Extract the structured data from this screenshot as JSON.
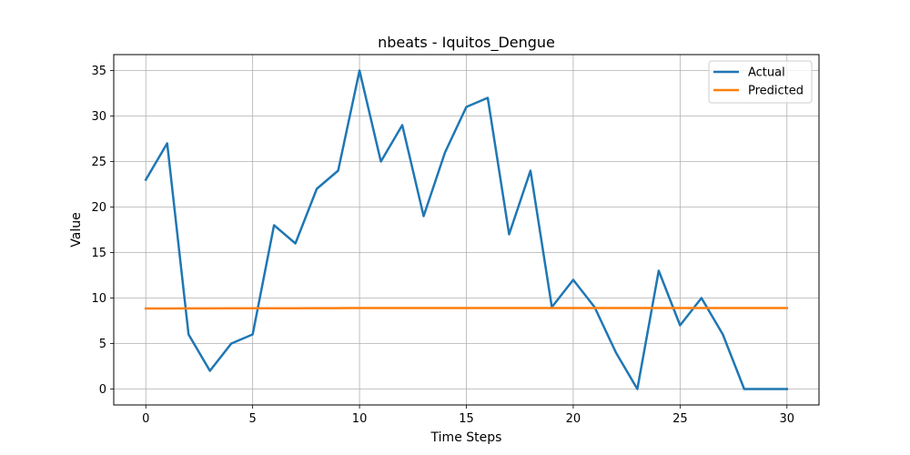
{
  "chart_data": {
    "type": "line",
    "title": "nbeats - Iquitos_Dengue",
    "xlabel": "Time Steps",
    "ylabel": "Value",
    "xlim": [
      -1.5,
      31.5
    ],
    "ylim": [
      -1.75,
      36.75
    ],
    "x_ticks": [
      0,
      5,
      10,
      15,
      20,
      25,
      30
    ],
    "y_ticks": [
      0,
      5,
      10,
      15,
      20,
      25,
      30,
      35
    ],
    "grid": true,
    "legend_position": "top-right",
    "x": [
      0,
      1,
      2,
      3,
      4,
      5,
      6,
      7,
      8,
      9,
      10,
      11,
      12,
      13,
      14,
      15,
      16,
      17,
      18,
      19,
      20,
      21,
      22,
      23,
      24,
      25,
      26,
      27,
      28,
      29,
      30
    ],
    "series": [
      {
        "name": "Actual",
        "color": "#1f77b4",
        "values": [
          23,
          27,
          6,
          2,
          5,
          6,
          18,
          16,
          22,
          24,
          35,
          25,
          29,
          19,
          26,
          31,
          32,
          17,
          24,
          9,
          12,
          9,
          4,
          0,
          13,
          7,
          10,
          6,
          0,
          0,
          0
        ]
      },
      {
        "name": "Predicted",
        "color": "#ff7f0e",
        "values": [
          8.85,
          8.85,
          8.86,
          8.86,
          8.87,
          8.87,
          8.88,
          8.88,
          8.89,
          8.89,
          8.9,
          8.9,
          8.9,
          8.9,
          8.9,
          8.9,
          8.9,
          8.9,
          8.9,
          8.9,
          8.9,
          8.9,
          8.9,
          8.9,
          8.9,
          8.9,
          8.9,
          8.9,
          8.9,
          8.9,
          8.9
        ]
      }
    ]
  }
}
